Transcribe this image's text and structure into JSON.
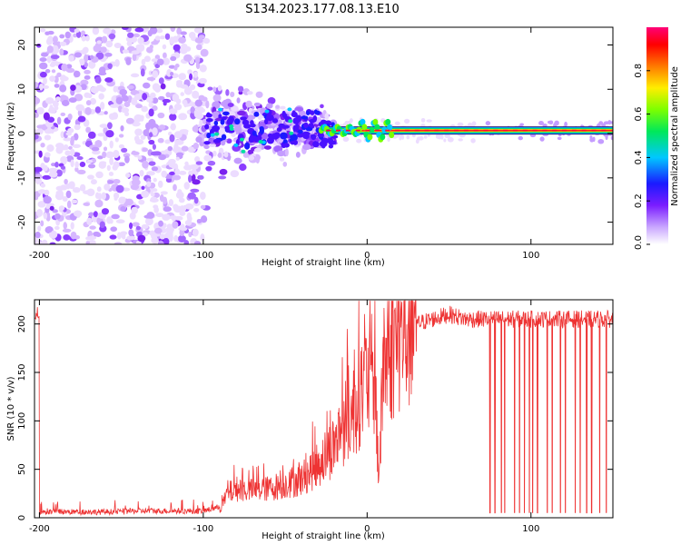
{
  "title": "S134.2023.177.08.13.E10",
  "chart_data": [
    {
      "type": "heatmap",
      "xlabel": "Height of straight line (km)",
      "ylabel": "Frequency (Hz)",
      "xlim": [
        -203,
        150
      ],
      "ylim": [
        -25,
        24
      ],
      "xticks": [
        -200,
        -100,
        0,
        100
      ],
      "yticks": [
        -20,
        -10,
        0,
        10,
        20
      ],
      "colorbar": {
        "label": "Normalized spectral amplitude",
        "range": [
          0,
          1
        ],
        "ticks": [
          0.0,
          0.2,
          0.4,
          0.6,
          0.8
        ]
      },
      "signal_band": {
        "x_from": -30,
        "x_to": 150,
        "frequency": 0.7
      },
      "regions": [
        {
          "x_from": -203,
          "x_to": -98,
          "description": "noise"
        },
        {
          "x_from": -98,
          "x_to": -20,
          "description": "scattered"
        },
        {
          "x_from": -20,
          "x_to": 150,
          "description": "signal"
        }
      ]
    },
    {
      "type": "line",
      "xlabel": "Height of straight line (km)",
      "ylabel": "SNR (10 * v/v)",
      "xlim": [
        -203,
        150
      ],
      "ylim": [
        0,
        225
      ],
      "xticks": [
        -200,
        -100,
        0,
        100
      ],
      "yticks": [
        0,
        50,
        100,
        150,
        200
      ],
      "series": [
        {
          "color": "#ee3333",
          "x": [
            -200,
            -180,
            -160,
            -140,
            -120,
            -100,
            -90,
            -85,
            -80,
            -70,
            -60,
            -50,
            -40,
            -30,
            -20,
            -15,
            -10,
            -5,
            0,
            5,
            7,
            10,
            15,
            20,
            30,
            40,
            50,
            60,
            80,
            100,
            120,
            140,
            150
          ],
          "values": [
            3,
            3,
            3,
            4,
            4,
            4,
            8,
            25,
            30,
            28,
            30,
            35,
            40,
            55,
            75,
            95,
            105,
            125,
            140,
            150,
            30,
            160,
            175,
            190,
            200,
            205,
            210,
            205,
            205,
            205,
            205,
            205,
            205
          ]
        }
      ],
      "dropouts": [
        75,
        78,
        82,
        84,
        90,
        93,
        96,
        99,
        101,
        104,
        110,
        113,
        118,
        121,
        127,
        130,
        134,
        137,
        142,
        146
      ]
    }
  ]
}
